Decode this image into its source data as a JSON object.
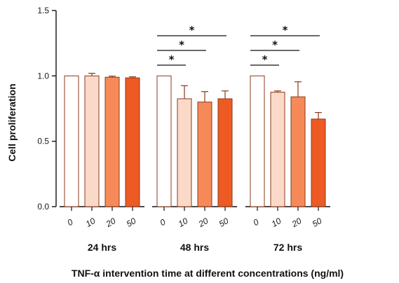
{
  "chart_data": {
    "type": "bar",
    "ylabel": "Cell proliferation",
    "xlabel": "TNF-α intervention time at different concentrations (ng/ml)",
    "ylim": [
      0,
      1.5
    ],
    "yticks": [
      "0.0",
      "0.5",
      "1.0",
      "1.5"
    ],
    "groups": [
      {
        "label": "24 hrs",
        "categories": [
          "0",
          "10",
          "20",
          "50"
        ],
        "values": [
          1.0,
          1.0,
          0.99,
          0.985
        ],
        "errors": [
          0,
          0.02,
          0.008,
          0.008
        ]
      },
      {
        "label": "48 hrs",
        "categories": [
          "0",
          "10",
          "20",
          "50"
        ],
        "values": [
          1.0,
          0.825,
          0.8,
          0.825
        ],
        "errors": [
          0,
          0.1,
          0.08,
          0.06
        ]
      },
      {
        "label": "72 hrs",
        "categories": [
          "0",
          "10",
          "20",
          "50"
        ],
        "values": [
          1.0,
          0.875,
          0.84,
          0.67
        ],
        "errors": [
          0,
          0.01,
          0.115,
          0.05
        ]
      }
    ],
    "colors": [
      "#ffffff",
      "#fad9c9",
      "#f58a58",
      "#ee5a24"
    ],
    "bar_stroke": "#8a3a1c",
    "significance": [
      {
        "group": 1,
        "from": 0,
        "to": 1,
        "label": "*"
      },
      {
        "group": 1,
        "from": 0,
        "to": 2,
        "label": "*"
      },
      {
        "group": 1,
        "from": 0,
        "to": 3,
        "label": "*"
      },
      {
        "group": 2,
        "from": 0,
        "to": 1,
        "label": "*"
      },
      {
        "group": 2,
        "from": 0,
        "to": 2,
        "label": "*"
      },
      {
        "group": 2,
        "from": 0,
        "to": 3,
        "label": "*"
      }
    ]
  }
}
